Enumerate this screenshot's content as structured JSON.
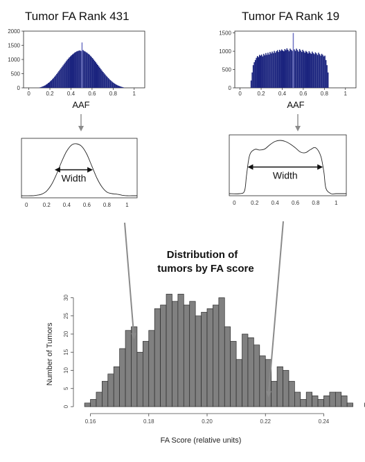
{
  "figure_text": {
    "left_title": "Tumor FA Rank 431",
    "right_title": "Tumor FA Rank 19",
    "caption_line1": "Distribution of",
    "caption_line2": "tumors by FA score",
    "left_width_label": "Width",
    "right_width_label": "Width"
  },
  "colors": {
    "hist_fill": "#1a237e",
    "hist_highlight": "#6f74c4",
    "dist_fill": "#808080",
    "arrow": "#8a8a8a"
  },
  "chart_data": [
    {
      "id": "left_hist",
      "type": "bar",
      "title": "Tumor FA Rank 431",
      "xlabel": "AAF",
      "ylabel": "",
      "xlim": [
        -0.05,
        1.1
      ],
      "ylim": [
        0,
        2000
      ],
      "xticks": [
        "0",
        "0.2",
        "0.4",
        "0.6",
        "0.8",
        "1"
      ],
      "yticks": [
        "0",
        "500",
        "1000",
        "1500",
        "2000"
      ],
      "spike_x": 0.5,
      "spike_y": 1600,
      "bins": {
        "x_start": 0.1,
        "width": 0.01,
        "values": [
          15,
          25,
          40,
          55,
          70,
          90,
          115,
          140,
          170,
          200,
          235,
          270,
          310,
          350,
          395,
          440,
          490,
          540,
          590,
          640,
          690,
          740,
          790,
          840,
          890,
          940,
          990,
          1030,
          1075,
          1110,
          1150,
          1180,
          1210,
          1240,
          1265,
          1285,
          1300,
          1310,
          1320,
          1300,
          1600,
          1330,
          1300,
          1280,
          1255,
          1230,
          1200,
          1170,
          1130,
          1090,
          1050,
          1000,
          955,
          905,
          855,
          805,
          755,
          705,
          655,
          605,
          560,
          515,
          470,
          425,
          385,
          345,
          305,
          270,
          235,
          205,
          175,
          150,
          125,
          105,
          85,
          70,
          55,
          42,
          30,
          20
        ]
      }
    },
    {
      "id": "right_hist",
      "type": "bar",
      "title": "Tumor FA Rank 19",
      "xlabel": "AAF",
      "ylabel": "",
      "xlim": [
        -0.05,
        1.1
      ],
      "ylim": [
        0,
        1550
      ],
      "xticks": [
        "0",
        "0.2",
        "0.4",
        "0.6",
        "0.8",
        "1"
      ],
      "yticks": [
        "0",
        "500",
        "1000",
        "1500"
      ],
      "spike_x": 0.5,
      "spike_y": 1500,
      "bins": {
        "x_start": 0.1,
        "width": 0.01,
        "values": [
          200,
          420,
          620,
          700,
          760,
          820,
          870,
          840,
          900,
          880,
          910,
          860,
          930,
          890,
          950,
          900,
          960,
          910,
          980,
          940,
          990,
          950,
          1010,
          960,
          1000,
          1030,
          980,
          1040,
          1010,
          1050,
          1020,
          1000,
          1060,
          1030,
          1080,
          1040,
          1000,
          1070,
          1040,
          1010,
          1500,
          1050,
          1010,
          1070,
          1030,
          990,
          1060,
          1020,
          980,
          1040,
          1000,
          960,
          1010,
          980,
          940,
          1000,
          960,
          930,
          990,
          950,
          920,
          970,
          940,
          900,
          960,
          920,
          880,
          930,
          900,
          860,
          880,
          760,
          620,
          420
        ]
      }
    },
    {
      "id": "left_density",
      "type": "line",
      "xticks": [
        "0",
        "0.2",
        "0.4",
        "0.6",
        "0.8",
        "1"
      ],
      "xlim": [
        -0.05,
        1.1
      ],
      "annotation": "Width",
      "width_range": [
        0.28,
        0.66
      ],
      "x": [
        -0.05,
        0.05,
        0.1,
        0.15,
        0.2,
        0.25,
        0.3,
        0.35,
        0.4,
        0.45,
        0.5,
        0.55,
        0.6,
        0.65,
        0.7,
        0.75,
        0.8,
        0.85,
        0.9,
        0.95,
        1.0,
        1.05,
        1.1
      ],
      "y": [
        0,
        0,
        0.01,
        0.03,
        0.09,
        0.22,
        0.42,
        0.66,
        0.86,
        0.98,
        1.0,
        0.95,
        0.8,
        0.57,
        0.34,
        0.17,
        0.07,
        0.04,
        0.03,
        0.01,
        0,
        0,
        0
      ]
    },
    {
      "id": "right_density",
      "type": "line",
      "xticks": [
        "0",
        "0.2",
        "0.4",
        "0.6",
        "0.8",
        "1"
      ],
      "xlim": [
        -0.05,
        1.1
      ],
      "annotation": "Width",
      "width_range": [
        0.13,
        0.87
      ],
      "x": [
        -0.05,
        0.05,
        0.1,
        0.12,
        0.15,
        0.2,
        0.25,
        0.3,
        0.35,
        0.4,
        0.45,
        0.5,
        0.55,
        0.6,
        0.65,
        0.7,
        0.75,
        0.8,
        0.85,
        0.88,
        0.9,
        0.95,
        1.0,
        1.1
      ],
      "y": [
        0,
        0,
        0.05,
        0.35,
        0.72,
        0.83,
        0.82,
        0.84,
        0.92,
        0.98,
        1.0,
        0.98,
        0.93,
        0.86,
        0.78,
        0.77,
        0.83,
        0.86,
        0.7,
        0.4,
        0.1,
        0,
        0,
        0
      ]
    },
    {
      "id": "fa_distribution",
      "type": "bar",
      "title": "Distribution of tumors by FA score",
      "xlabel": "FA Score (relative units)",
      "ylabel": "Number of Tumors",
      "xlim": [
        0.1575,
        0.2425
      ],
      "ylim": [
        0,
        32
      ],
      "xticks": [
        "0.16",
        "0.18",
        "0.20",
        "0.22",
        "0.24"
      ],
      "yticks": [
        "0",
        "5",
        "10",
        "15",
        "20",
        "25",
        "30"
      ],
      "bins": {
        "x_start": 0.158,
        "width": 0.002,
        "values": [
          1,
          2,
          4,
          7,
          9,
          11,
          16,
          21,
          22,
          15,
          18,
          21,
          27,
          28,
          31,
          29,
          31,
          28,
          29,
          25,
          26,
          27,
          28,
          30,
          22,
          18,
          13,
          20,
          19,
          17,
          14,
          13,
          7,
          11,
          10,
          7,
          4,
          2,
          4,
          3,
          2,
          3,
          4,
          4,
          3,
          1,
          0,
          0,
          1,
          1,
          0,
          0,
          1
        ]
      },
      "marker_left_x": 0.175,
      "marker_left_y": 18,
      "marker_right_x": 0.221,
      "marker_right_y": 2
    }
  ]
}
